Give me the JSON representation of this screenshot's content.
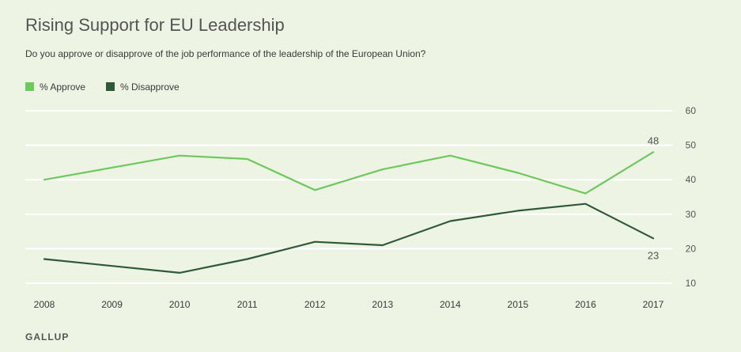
{
  "chart_data": {
    "type": "line",
    "title": "Rising Support for EU Leadership",
    "subtitle": "Do you approve or disapprove of the job performance of the leadership of the European Union?",
    "x": [
      "2008",
      "2009",
      "2010",
      "2011",
      "2012",
      "2013",
      "2014",
      "2015",
      "2016",
      "2017"
    ],
    "series": [
      {
        "name": "% Approve",
        "color": "#6cc95b",
        "values": [
          40,
          43.5,
          47,
          46,
          37,
          43,
          47,
          42,
          36,
          48
        ]
      },
      {
        "name": "% Disapprove",
        "color": "#2f5a3a",
        "values": [
          17,
          15,
          13,
          17,
          22,
          21,
          28,
          31,
          33,
          23
        ]
      }
    ],
    "yticks": [
      10,
      20,
      30,
      40,
      50,
      60
    ],
    "ylim": [
      10,
      60
    ],
    "grid": true,
    "legend": "top-left",
    "annotations": [
      {
        "text": "48",
        "series": 0,
        "index": 9,
        "placement": "above"
      },
      {
        "text": "23",
        "series": 1,
        "index": 9,
        "placement": "below"
      }
    ],
    "source": "GALLUP"
  }
}
